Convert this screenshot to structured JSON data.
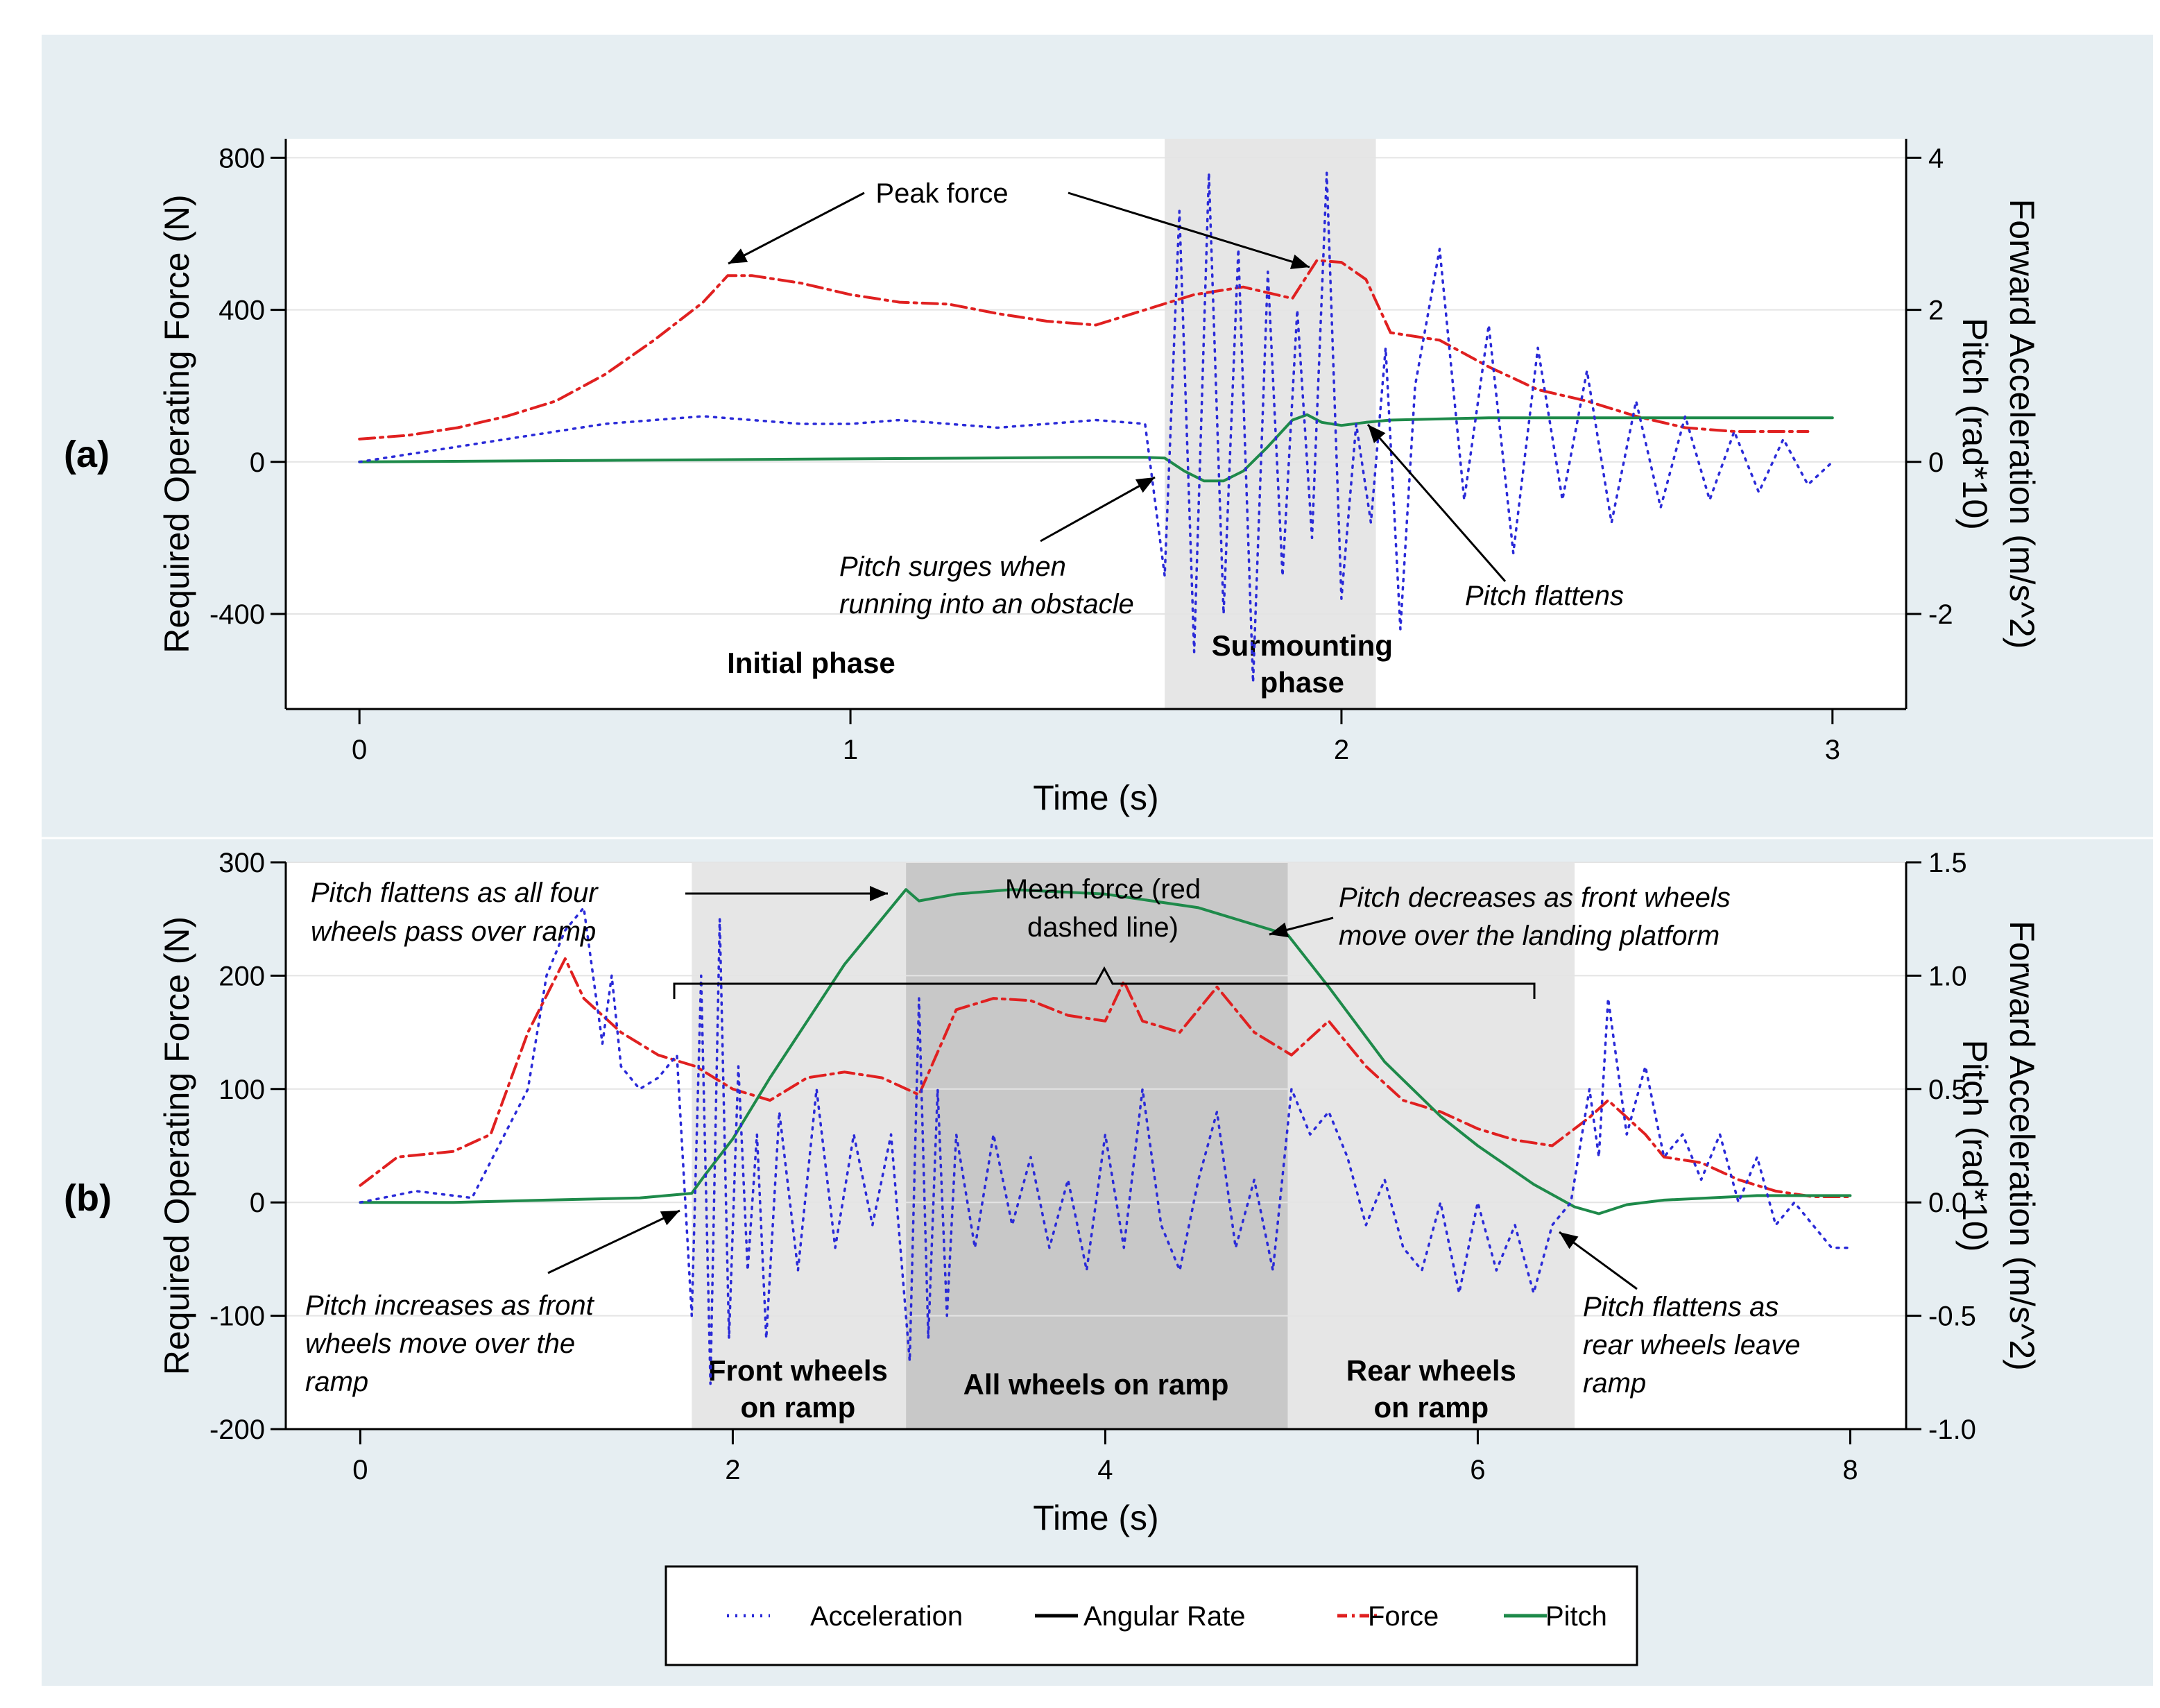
{
  "colors": {
    "background": "#e6eef2",
    "plot_bg": "#ffffff",
    "phase_light": "#e6e6e6",
    "phase_dark": "#c8c8c8",
    "acceleration": "#2a2ad8",
    "angular_rate": "#000000",
    "force": "#e02020",
    "pitch": "#1e8a4a"
  },
  "legend": {
    "items": [
      {
        "label": "Acceleration",
        "key": "acceleration",
        "style": "dotted"
      },
      {
        "label": "Angular Rate",
        "key": "angular_rate",
        "style": "solid"
      },
      {
        "label": "Force",
        "key": "force",
        "style": "dashdot"
      },
      {
        "label": "Pitch",
        "key": "pitch",
        "style": "solid"
      }
    ]
  },
  "chart_data": [
    {
      "panel_label": "(a)",
      "type": "line",
      "xlabel": "Time (s)",
      "ylabel_left": "Required Operating Force (N)",
      "ylabel_right_1": "Forward Acceleration (m/s^2)",
      "ylabel_right_2": "Pitch (rad*10)",
      "xlim": [
        -0.15,
        3.15
      ],
      "ylim_left": [
        -650,
        850
      ],
      "ylim_right": [
        -3.25,
        4.25
      ],
      "x_ticks": [
        0,
        1,
        2,
        3
      ],
      "y_left_ticks": [
        -400,
        0,
        400,
        800
      ],
      "y_right_ticks": [
        -2,
        0,
        2,
        4
      ],
      "phases": [
        {
          "start": 1.64,
          "end": 2.07,
          "shade": "light"
        }
      ],
      "phase_labels": [
        {
          "text": "Initial phase",
          "x": 0.92
        },
        {
          "text": "Surmounting phase",
          "x": 1.92
        }
      ],
      "series": [
        {
          "name": "Force",
          "key": "force",
          "axis": "left",
          "x": [
            0,
            0.1,
            0.2,
            0.3,
            0.4,
            0.5,
            0.6,
            0.7,
            0.75,
            0.8,
            0.9,
            1.0,
            1.1,
            1.2,
            1.3,
            1.4,
            1.5,
            1.6,
            1.7,
            1.8,
            1.9,
            1.95,
            2.0,
            2.05,
            2.1,
            2.2,
            2.3,
            2.4,
            2.5,
            2.6,
            2.7,
            2.8,
            2.9,
            2.95
          ],
          "values": [
            60,
            70,
            90,
            120,
            160,
            230,
            320,
            420,
            490,
            490,
            470,
            440,
            420,
            415,
            390,
            370,
            360,
            400,
            440,
            460,
            430,
            530,
            525,
            480,
            340,
            320,
            250,
            190,
            160,
            120,
            90,
            80,
            80,
            80
          ]
        },
        {
          "name": "Pitch",
          "key": "pitch",
          "axis": "right",
          "x": [
            0,
            0.5,
            1.0,
            1.5,
            1.6,
            1.64,
            1.68,
            1.72,
            1.76,
            1.8,
            1.85,
            1.9,
            1.93,
            1.96,
            2.0,
            2.05,
            2.1,
            2.3,
            2.5,
            2.7,
            3.0
          ],
          "values": [
            0.0,
            0.02,
            0.04,
            0.06,
            0.06,
            0.05,
            -0.12,
            -0.25,
            -0.25,
            -0.12,
            0.2,
            0.55,
            0.62,
            0.52,
            0.48,
            0.52,
            0.55,
            0.58,
            0.58,
            0.58,
            0.58
          ]
        },
        {
          "name": "Acceleration",
          "key": "acceleration",
          "axis": "right",
          "x": [
            0,
            0.1,
            0.2,
            0.3,
            0.4,
            0.5,
            0.6,
            0.7,
            0.8,
            0.9,
            1.0,
            1.1,
            1.2,
            1.3,
            1.4,
            1.5,
            1.6,
            1.64,
            1.67,
            1.7,
            1.73,
            1.76,
            1.79,
            1.82,
            1.85,
            1.88,
            1.91,
            1.94,
            1.97,
            2.0,
            2.03,
            2.06,
            2.09,
            2.12,
            2.15,
            2.2,
            2.25,
            2.3,
            2.35,
            2.4,
            2.45,
            2.5,
            2.55,
            2.6,
            2.65,
            2.7,
            2.75,
            2.8,
            2.85,
            2.9,
            2.95,
            3.0
          ],
          "values": [
            0.0,
            0.1,
            0.2,
            0.3,
            0.4,
            0.5,
            0.55,
            0.6,
            0.55,
            0.5,
            0.5,
            0.55,
            0.5,
            0.45,
            0.5,
            0.55,
            0.5,
            -1.5,
            3.3,
            -2.5,
            3.8,
            -2.0,
            2.8,
            -2.9,
            2.5,
            -1.5,
            2.0,
            -1.0,
            3.8,
            -1.8,
            0.5,
            -0.8,
            1.5,
            -2.2,
            1.0,
            2.8,
            -0.5,
            1.8,
            -1.2,
            1.5,
            -0.5,
            1.2,
            -0.8,
            0.8,
            -0.6,
            0.6,
            -0.5,
            0.4,
            -0.4,
            0.3,
            -0.3,
            0.0
          ]
        }
      ],
      "annotations": [
        {
          "text": "Peak force",
          "style": "normal"
        },
        {
          "text": "Pitch surges when",
          "style": "italic"
        },
        {
          "text": "running into an obstacle",
          "style": "italic"
        },
        {
          "text": "Pitch flattens",
          "style": "italic"
        }
      ]
    },
    {
      "panel_label": "(b)",
      "type": "line",
      "xlabel": "Time (s)",
      "ylabel_left": "Required Operating Force (N)",
      "ylabel_right_1": "Forward Acceleration (m/s^2)",
      "ylabel_right_2": "Pitch (rad*10)",
      "xlim": [
        -0.4,
        8.3
      ],
      "ylim_left": [
        -200,
        300
      ],
      "ylim_right": [
        -1.0,
        1.5
      ],
      "x_ticks": [
        0,
        2,
        4,
        6,
        8
      ],
      "y_left_ticks": [
        -200,
        -100,
        0,
        100,
        200,
        300
      ],
      "y_right_ticks": [
        -1.0,
        -0.5,
        0.0,
        0.5,
        1.0,
        1.5
      ],
      "y_right_tick_labels": [
        "-1.0",
        "-0.5",
        "0.0",
        "0.5",
        "1.0",
        "1.5"
      ],
      "phases": [
        {
          "start": 1.78,
          "end": 2.93,
          "shade": "light"
        },
        {
          "start": 2.93,
          "end": 4.98,
          "shade": "dark"
        },
        {
          "start": 4.98,
          "end": 6.52,
          "shade": "light"
        }
      ],
      "phase_labels": [
        {
          "text": "Front wheels on ramp",
          "x": 2.35
        },
        {
          "text": "All wheels on ramp",
          "x": 3.95
        },
        {
          "text": "Rear wheels on ramp",
          "x": 5.75
        }
      ],
      "series": [
        {
          "name": "Force",
          "key": "force",
          "axis": "left",
          "x": [
            0,
            0.2,
            0.5,
            0.7,
            0.9,
            1.1,
            1.2,
            1.4,
            1.6,
            1.8,
            2.0,
            2.2,
            2.4,
            2.6,
            2.8,
            3.0,
            3.2,
            3.4,
            3.6,
            3.8,
            4.0,
            4.1,
            4.2,
            4.4,
            4.6,
            4.7,
            4.8,
            5.0,
            5.2,
            5.4,
            5.6,
            5.8,
            6.0,
            6.2,
            6.4,
            6.6,
            6.7,
            6.9,
            7.0,
            7.2,
            7.4,
            7.6,
            7.8,
            8.0
          ],
          "values": [
            15,
            40,
            45,
            60,
            150,
            215,
            180,
            150,
            130,
            120,
            100,
            90,
            110,
            115,
            110,
            95,
            170,
            180,
            178,
            165,
            160,
            195,
            160,
            150,
            190,
            170,
            150,
            130,
            160,
            120,
            90,
            80,
            65,
            55,
            50,
            75,
            90,
            60,
            40,
            35,
            20,
            10,
            5,
            5
          ]
        },
        {
          "name": "Pitch",
          "key": "pitch",
          "axis": "right",
          "x": [
            0,
            0.5,
            1.0,
            1.5,
            1.78,
            1.85,
            2.0,
            2.2,
            2.4,
            2.6,
            2.8,
            2.93,
            3.0,
            3.2,
            3.5,
            4.0,
            4.5,
            4.98,
            5.2,
            5.5,
            5.8,
            6.0,
            6.3,
            6.52,
            6.65,
            6.8,
            7.0,
            7.5,
            8.0
          ],
          "values": [
            0.0,
            0.0,
            0.01,
            0.02,
            0.04,
            0.12,
            0.28,
            0.55,
            0.8,
            1.05,
            1.25,
            1.38,
            1.33,
            1.36,
            1.38,
            1.36,
            1.3,
            1.18,
            0.95,
            0.62,
            0.38,
            0.25,
            0.08,
            -0.02,
            -0.05,
            -0.01,
            0.01,
            0.03,
            0.03
          ]
        },
        {
          "name": "Acceleration",
          "key": "acceleration",
          "axis": "right",
          "x": [
            0,
            0.3,
            0.6,
            0.9,
            1.0,
            1.1,
            1.2,
            1.3,
            1.35,
            1.4,
            1.5,
            1.6,
            1.7,
            1.78,
            1.83,
            1.88,
            1.93,
            1.98,
            2.03,
            2.08,
            2.13,
            2.18,
            2.25,
            2.35,
            2.45,
            2.55,
            2.65,
            2.75,
            2.85,
            2.95,
            3.0,
            3.05,
            3.1,
            3.15,
            3.2,
            3.3,
            3.4,
            3.5,
            3.6,
            3.7,
            3.8,
            3.9,
            4.0,
            4.1,
            4.2,
            4.3,
            4.4,
            4.5,
            4.6,
            4.7,
            4.8,
            4.9,
            5.0,
            5.1,
            5.2,
            5.3,
            5.4,
            5.5,
            5.6,
            5.7,
            5.8,
            5.9,
            6.0,
            6.1,
            6.2,
            6.3,
            6.4,
            6.5,
            6.6,
            6.65,
            6.7,
            6.8,
            6.9,
            7.0,
            7.1,
            7.2,
            7.3,
            7.4,
            7.5,
            7.6,
            7.7,
            7.8,
            7.9,
            8.0
          ],
          "values": [
            0.0,
            0.05,
            0.02,
            0.5,
            1.0,
            1.2,
            1.3,
            0.7,
            1.0,
            0.6,
            0.5,
            0.55,
            0.65,
            -0.5,
            1.0,
            -0.8,
            1.25,
            -0.6,
            0.6,
            -0.3,
            0.3,
            -0.6,
            0.4,
            -0.3,
            0.5,
            -0.2,
            0.3,
            -0.1,
            0.3,
            -0.7,
            0.9,
            -0.6,
            0.5,
            -0.5,
            0.3,
            -0.2,
            0.3,
            -0.1,
            0.2,
            -0.2,
            0.1,
            -0.3,
            0.3,
            -0.2,
            0.5,
            -0.1,
            -0.3,
            0.1,
            0.4,
            -0.2,
            0.1,
            -0.3,
            0.5,
            0.3,
            0.4,
            0.2,
            -0.1,
            0.1,
            -0.2,
            -0.3,
            0.0,
            -0.4,
            0.0,
            -0.3,
            -0.1,
            -0.4,
            -0.1,
            0.0,
            0.5,
            0.2,
            0.9,
            0.3,
            0.6,
            0.2,
            0.3,
            0.1,
            0.3,
            0.0,
            0.2,
            -0.1,
            0.0,
            -0.1,
            -0.2,
            -0.2
          ]
        }
      ],
      "annotations": [
        {
          "text": "Pitch flattens as all four",
          "style": "italic"
        },
        {
          "text": "wheels pass over ramp",
          "style": "italic"
        },
        {
          "text": "Mean force (red",
          "style": "normal"
        },
        {
          "text": "dashed line)",
          "style": "normal"
        },
        {
          "text": "Pitch decreases as front wheels",
          "style": "italic"
        },
        {
          "text": "move over the landing platform",
          "style": "italic"
        },
        {
          "text": "Pitch increases as front",
          "style": "italic"
        },
        {
          "text": "wheels move over the",
          "style": "italic"
        },
        {
          "text": "ramp",
          "style": "italic"
        },
        {
          "text": "Pitch flattens as",
          "style": "italic"
        },
        {
          "text": "rear wheels leave",
          "style": "italic"
        },
        {
          "text": "ramp",
          "style": "italic"
        }
      ]
    }
  ]
}
